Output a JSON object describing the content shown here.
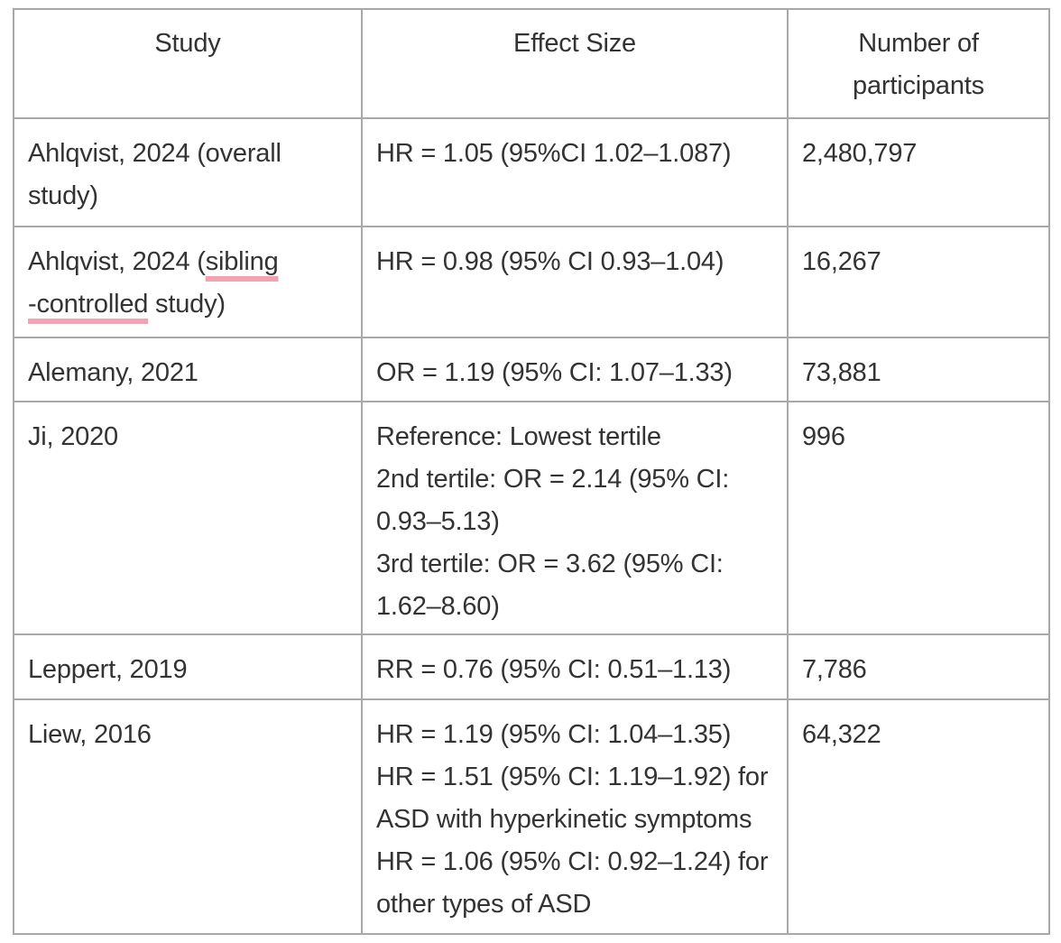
{
  "colors": {
    "border": "#a8a8a8",
    "text": "#333333",
    "spellcheck_underline": "#f4a1b2",
    "background": "#ffffff"
  },
  "table": {
    "headers": [
      "Study",
      "Effect Size",
      "Number of participants"
    ],
    "header_lines": [
      [
        [
          "Study"
        ]
      ],
      [
        [
          "Effect Size"
        ]
      ],
      [
        [
          "Number of"
        ],
        [
          "participants"
        ]
      ]
    ],
    "rows": [
      {
        "study_lines": [
          [
            "Ahlqvist, 2024 (overall"
          ],
          [
            "study)"
          ]
        ],
        "effect_lines": [
          [
            "HR = 1.05 (95%CI 1.02–1.087)"
          ]
        ],
        "participants": "2,480,797"
      },
      {
        "study_lines": [
          [
            "Ahlqvist, 2024 (",
            {
              "t": "sibling",
              "u": true
            }
          ],
          [
            {
              "t": "-controlled",
              "u": true
            },
            " study)"
          ]
        ],
        "effect_lines": [
          [
            "HR = 0.98 (95% CI 0.93–1.04)"
          ]
        ],
        "participants": "16,267"
      },
      {
        "study_lines": [
          [
            "Alemany, 2021"
          ]
        ],
        "effect_lines": [
          [
            "OR = 1.19 (95% CI: 1.07–1.33)"
          ]
        ],
        "participants": "73,881"
      },
      {
        "study_lines": [
          [
            "Ji, 2020"
          ]
        ],
        "effect_lines": [
          [
            "Reference: Lowest tertile"
          ],
          [
            "2nd tertile: OR = 2.14 (95% CI:"
          ],
          [
            "0.93–5.13)"
          ],
          [
            "3rd tertile: OR = 3.62 (95% CI:"
          ],
          [
            "1.62–8.60)"
          ]
        ],
        "participants": "996"
      },
      {
        "study_lines": [
          [
            "Leppert, 2019"
          ]
        ],
        "effect_lines": [
          [
            "RR = 0.76 (95% CI: 0.51–1.13)"
          ]
        ],
        "participants": "7,786"
      },
      {
        "study_lines": [
          [
            "Liew, 2016"
          ]
        ],
        "effect_lines": [
          [
            "HR = 1.19 (95% CI: 1.04–1.35)"
          ],
          [
            "HR = 1.51 (95% CI: 1.19–1.92) for"
          ],
          [
            "ASD with hyperkinetic symptoms"
          ],
          [
            "HR = 1.06 (95% CI: 0.92–1.24) for"
          ],
          [
            "other types of ASD"
          ]
        ],
        "participants": "64,322"
      }
    ]
  }
}
